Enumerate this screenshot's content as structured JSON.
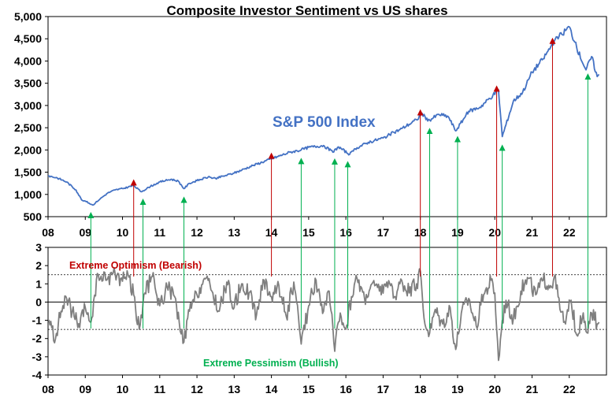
{
  "chart_data": [
    {
      "type": "line",
      "title": "Composite Investor Sentiment vs US shares",
      "series": [
        {
          "name": "S&P 500 Index",
          "color": "#4472C4",
          "x": [
            2008.0,
            2008.25,
            2008.5,
            2008.75,
            2008.9,
            2009.0,
            2009.2,
            2009.4,
            2009.6,
            2009.8,
            2010.0,
            2010.3,
            2010.5,
            2010.75,
            2011.0,
            2011.3,
            2011.5,
            2011.65,
            2011.8,
            2012.0,
            2012.3,
            2012.5,
            2012.75,
            2013.0,
            2013.5,
            2014.0,
            2014.5,
            2014.8,
            2015.0,
            2015.4,
            2015.65,
            2015.8,
            2016.1,
            2016.3,
            2016.6,
            2017.0,
            2017.5,
            2017.9,
            2018.05,
            2018.2,
            2018.5,
            2018.75,
            2018.95,
            2019.3,
            2019.6,
            2019.95,
            2020.1,
            2020.2,
            2020.5,
            2020.75,
            2021.0,
            2021.3,
            2021.6,
            2021.8,
            2022.0,
            2022.2,
            2022.45,
            2022.6,
            2022.75,
            2022.8
          ],
          "values": [
            1420,
            1370,
            1280,
            1100,
            880,
            850,
            760,
            900,
            1030,
            1100,
            1130,
            1200,
            1060,
            1180,
            1280,
            1340,
            1300,
            1130,
            1250,
            1310,
            1390,
            1360,
            1420,
            1480,
            1650,
            1800,
            1950,
            2000,
            2060,
            2100,
            1950,
            2070,
            1900,
            2050,
            2170,
            2270,
            2480,
            2680,
            2820,
            2650,
            2800,
            2750,
            2430,
            2870,
            2960,
            3230,
            3350,
            2300,
            3100,
            3300,
            3750,
            4050,
            4450,
            4600,
            4770,
            4300,
            3800,
            4100,
            3650,
            3700
          ]
        },
        {
          "name": "Composite Investor Sentiment",
          "color": "#7F7F7F",
          "x": [
            2008.0,
            2008.2,
            2008.35,
            2008.5,
            2008.7,
            2008.85,
            2009.0,
            2009.15,
            2009.35,
            2009.55,
            2009.75,
            2009.95,
            2010.15,
            2010.3,
            2010.45,
            2010.6,
            2010.8,
            2011.0,
            2011.2,
            2011.4,
            2011.55,
            2011.65,
            2011.8,
            2012.0,
            2012.2,
            2012.4,
            2012.6,
            2012.8,
            2013.0,
            2013.2,
            2013.4,
            2013.6,
            2013.8,
            2014.0,
            2014.2,
            2014.4,
            2014.6,
            2014.8,
            2015.0,
            2015.2,
            2015.4,
            2015.55,
            2015.7,
            2015.85,
            2016.0,
            2016.15,
            2016.3,
            2016.5,
            2016.7,
            2016.9,
            2017.1,
            2017.3,
            2017.5,
            2017.7,
            2017.9,
            2018.0,
            2018.1,
            2018.25,
            2018.4,
            2018.6,
            2018.8,
            2018.95,
            2019.1,
            2019.3,
            2019.5,
            2019.7,
            2019.9,
            2020.0,
            2020.1,
            2020.2,
            2020.3,
            2020.5,
            2020.7,
            2020.9,
            2021.1,
            2021.3,
            2021.5,
            2021.6,
            2021.75,
            2021.9,
            2022.05,
            2022.2,
            2022.35,
            2022.5,
            2022.6,
            2022.75,
            2022.8
          ],
          "values": [
            -1.0,
            -2.0,
            -0.5,
            0.2,
            -0.8,
            -1.4,
            -0.3,
            -1.1,
            1.5,
            1.2,
            1.6,
            1.3,
            1.5,
            0.4,
            -1.5,
            0.5,
            1.4,
            -0.2,
            0.8,
            0.3,
            -1.6,
            -2.2,
            -0.5,
            0.4,
            1.3,
            0.6,
            -0.5,
            1.1,
            -0.3,
            1.0,
            0.5,
            -0.7,
            1.2,
            0.3,
            0.9,
            -0.8,
            1.1,
            -2.3,
            -0.2,
            1.2,
            -0.5,
            0.6,
            -2.7,
            -0.6,
            -1.5,
            0.3,
            1.3,
            0.2,
            1.0,
            0.6,
            1.1,
            0.3,
            1.2,
            0.5,
            1.0,
            1.7,
            -0.9,
            -1.7,
            -0.4,
            -1.2,
            -0.3,
            -2.6,
            -0.6,
            0.2,
            -1.3,
            0.4,
            1.2,
            0.5,
            -3.2,
            -1.0,
            0.1,
            -0.9,
            0.6,
            1.3,
            0.4,
            1.2,
            0.9,
            1.4,
            -0.4,
            -1.2,
            0.1,
            -1.8,
            -0.9,
            -1.7,
            -0.6,
            -1.2,
            -1.1
          ]
        }
      ],
      "annotations": [
        {
          "label": "S&P 500 Index",
          "color": "#4472C4"
        },
        {
          "label": "Extreme Optimism (Bearish)",
          "color": "#C00000",
          "threshold": 1.5
        },
        {
          "label": "Extreme Pessimism (Bullish)",
          "color": "#00B050",
          "threshold": -1.5
        }
      ],
      "bearish_signals": [
        2010.3,
        2014.0,
        2018.0,
        2020.05,
        2021.55
      ],
      "bullish_signals": [
        2009.15,
        2010.55,
        2011.65,
        2014.8,
        2015.7,
        2016.05,
        2018.25,
        2019.0,
        2020.2,
        2022.5
      ],
      "x_ticks": [
        "08",
        "09",
        "10",
        "11",
        "12",
        "13",
        "14",
        "15",
        "16",
        "17",
        "18",
        "19",
        "20",
        "21",
        "22"
      ],
      "xlim": [
        2008,
        2023
      ],
      "top_panel": {
        "ylim": [
          500,
          5000
        ],
        "y_ticks": [
          "500",
          "1,000",
          "1,500",
          "2,000",
          "2,500",
          "3,000",
          "3,500",
          "4,000",
          "4,500",
          "5,000"
        ]
      },
      "bottom_panel": {
        "ylim": [
          -4,
          3
        ],
        "y_ticks": [
          "3",
          "2",
          "1",
          "0",
          "-1",
          "-2",
          "-3",
          "-4"
        ]
      },
      "colors": {
        "up_arrow": "#C00000",
        "down_arrow": "#00B050"
      }
    }
  ]
}
